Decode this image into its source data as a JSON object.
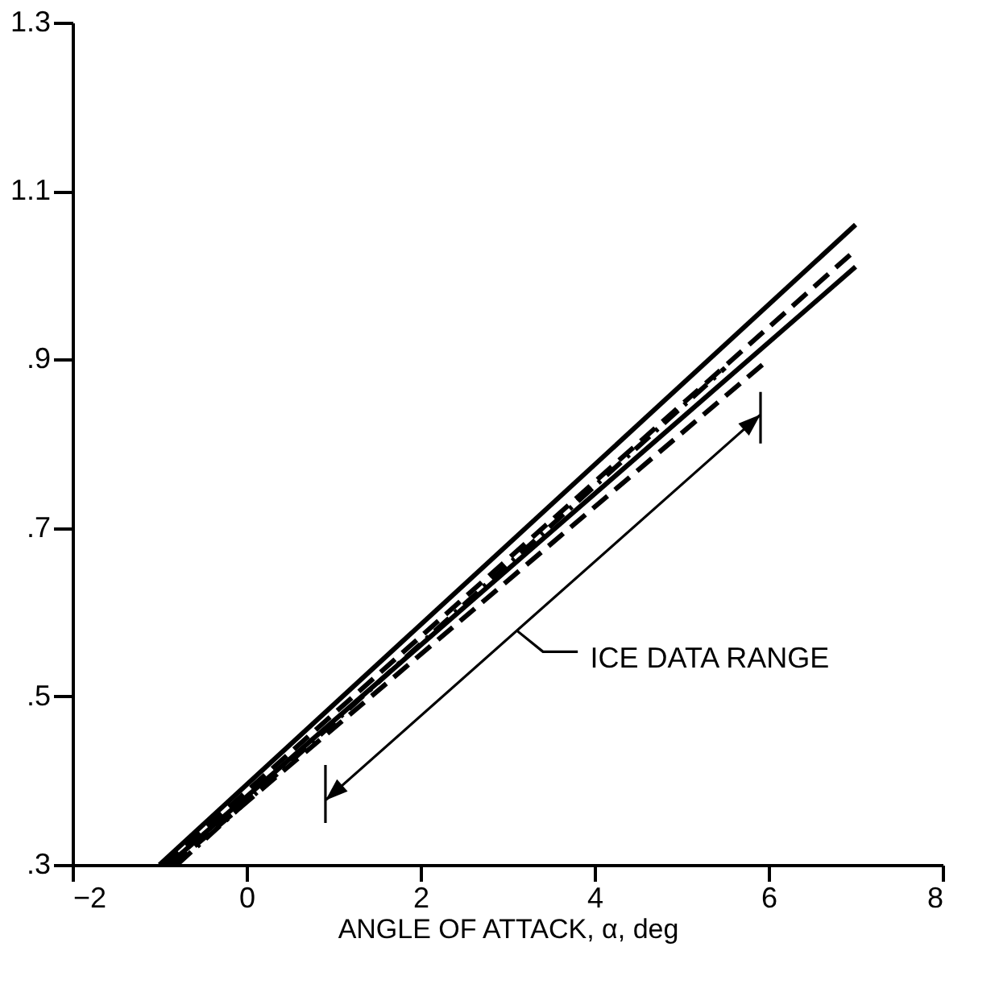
{
  "chart_data": {
    "type": "line",
    "xlabel": "ANGLE OF ATTACK, α, deg",
    "xlim": [
      -2,
      8
    ],
    "xticks": [
      -2,
      0,
      2,
      4,
      6,
      8
    ],
    "ylim": [
      0.3,
      1.3
    ],
    "yticks": [
      {
        "value": 0.3,
        "label": ".3"
      },
      {
        "value": 0.5,
        "label": ".5"
      },
      {
        "value": 0.7,
        "label": ".7"
      },
      {
        "value": 0.9,
        "label": ".9"
      },
      {
        "value": 1.1,
        "label": "1.1"
      },
      {
        "value": 1.3,
        "label": "1.3"
      }
    ],
    "grid": false,
    "series": [
      {
        "color": "#000000",
        "line_style": "solid",
        "x": [
          -1.0,
          7.0
        ],
        "values": [
          0.3,
          1.06
        ]
      },
      {
        "color": "#000000",
        "line_style": "dashed",
        "x": [
          -0.95,
          7.0
        ],
        "values": [
          0.3,
          1.03
        ]
      },
      {
        "color": "#000000",
        "line_style": "solid",
        "x": [
          -0.9,
          7.0
        ],
        "values": [
          0.3,
          1.01
        ]
      },
      {
        "color": "#000000",
        "line_style": "dashdot",
        "x": [
          -0.8,
          5.5
        ],
        "values": [
          0.3,
          0.89
        ]
      },
      {
        "color": "#000000",
        "line_style": "dashed",
        "x": [
          -0.85,
          6.0
        ],
        "values": [
          0.3,
          0.9
        ]
      }
    ],
    "annotations": [
      "ICE DATA RANGE"
    ]
  }
}
